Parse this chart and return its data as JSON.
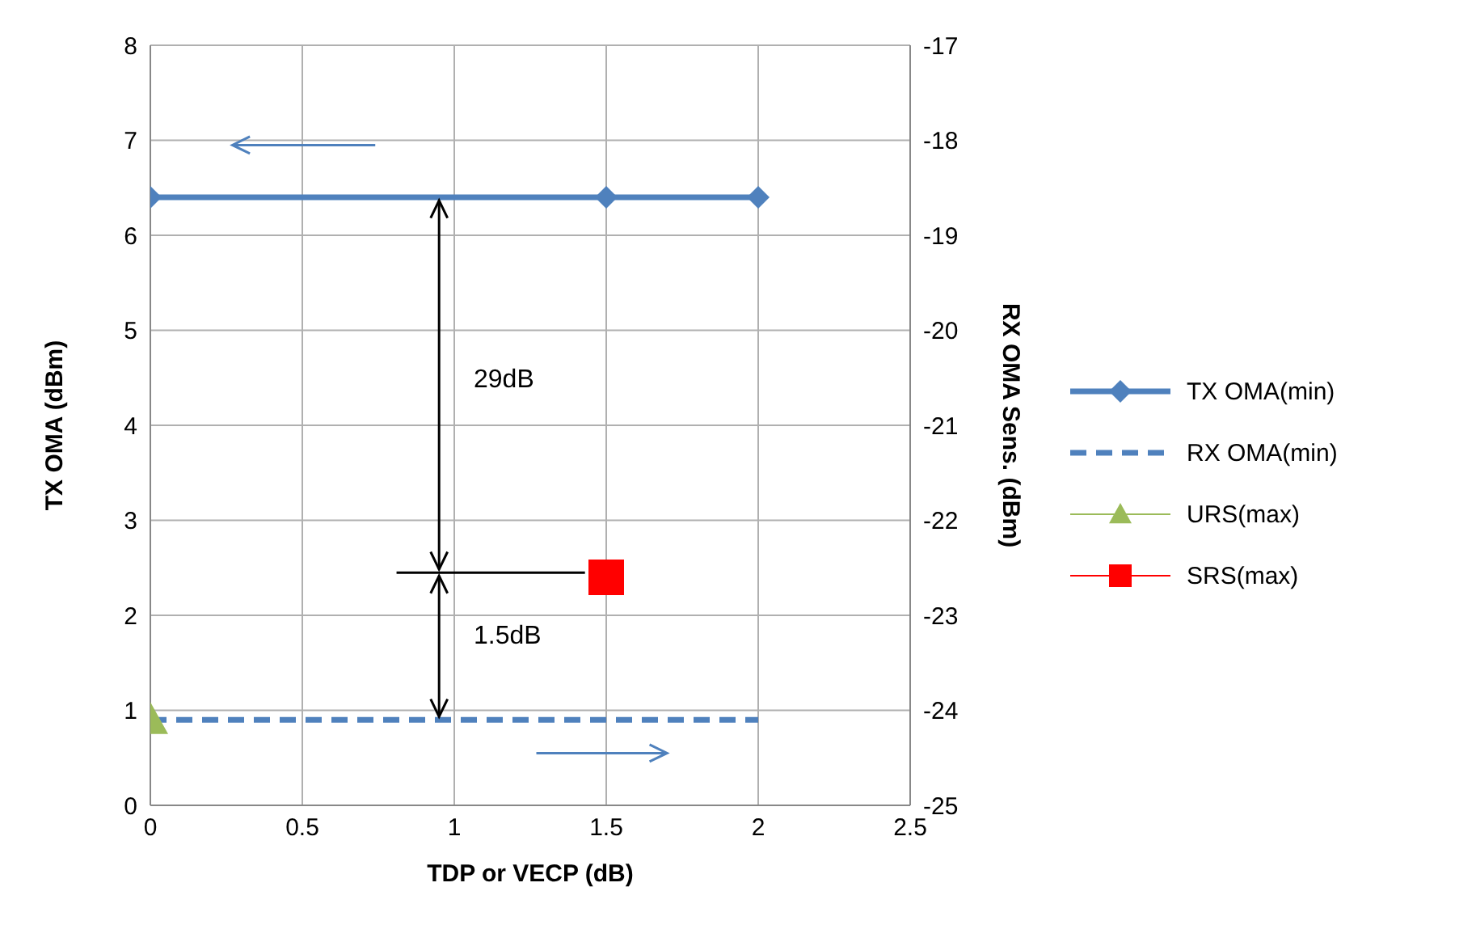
{
  "chart_data": {
    "type": "line",
    "xlabel": "TDP or VECP  (dB)",
    "ylabel": "TX OMA  (dBm)",
    "y2label": "RX OMA Sens.  (dBm)",
    "xlim": [
      0,
      2.5
    ],
    "xticks": [
      0,
      0.5,
      1,
      1.5,
      2,
      2.5
    ],
    "ylim": [
      0,
      8
    ],
    "yticks": [
      0,
      1,
      2,
      3,
      4,
      5,
      6,
      7,
      8
    ],
    "y2lim": [
      -25,
      -17
    ],
    "y2ticks": [
      -25,
      -24,
      -23,
      -22,
      -21,
      -20,
      -19,
      -18,
      -17
    ],
    "grid": true,
    "legend": "right",
    "series": [
      {
        "name": "TX OMA(min)",
        "color": "#4f81bd",
        "x": [
          0,
          1.5,
          2
        ],
        "values": [
          6.4,
          6.4,
          6.4
        ],
        "marker": "diamond",
        "line_style": "solid"
      },
      {
        "name": "RX OMA(min)",
        "color": "#4f81bd",
        "axis": "y2",
        "x": [
          0,
          2
        ],
        "values": [
          -24.1,
          -24.1
        ],
        "marker": "none",
        "line_style": "dashed"
      },
      {
        "name": "URS(max)",
        "type": "scatter",
        "color": "#9bbb59",
        "x": [
          0
        ],
        "values": [
          0.9
        ],
        "marker": "triangle"
      },
      {
        "name": "SRS(max)",
        "type": "scatter",
        "color": "#ff0000",
        "x": [
          1.5
        ],
        "values": [
          2.4
        ],
        "marker": "square"
      }
    ],
    "annotations": [
      "29dB",
      "1.5dB"
    ]
  }
}
